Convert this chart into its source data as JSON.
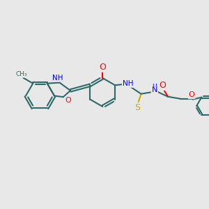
{
  "background_color": "#e8e8e8",
  "bond_color": "#2d6b6b",
  "bond_width": 1.5,
  "nitrogen_color": "#0000ff",
  "oxygen_color": "#ff0000",
  "sulfur_color": "#ccaa00",
  "figsize": [
    3.0,
    3.0
  ],
  "dpi": 100,
  "xlim": [
    0,
    12
  ],
  "ylim": [
    0,
    12
  ]
}
